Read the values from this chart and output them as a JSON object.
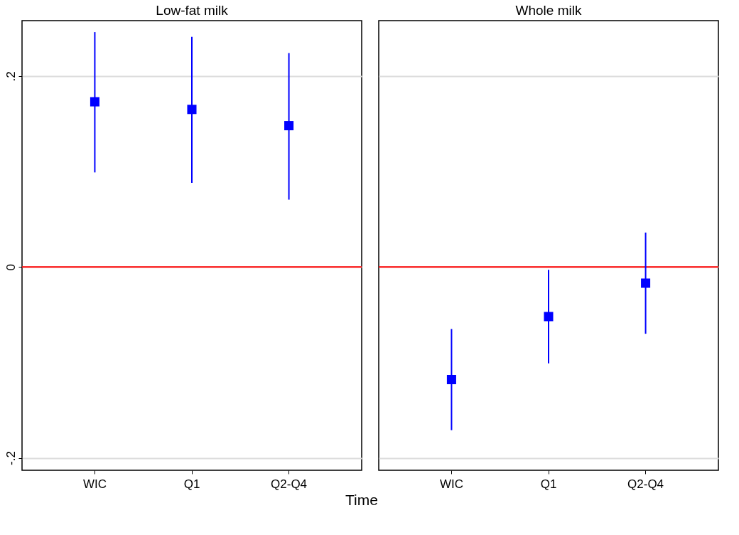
{
  "chart_data": [
    {
      "type": "scatter",
      "title": "Low-fat milk",
      "xlabel": "Time",
      "categories": [
        "WIC",
        "Q1",
        "Q2-Q4"
      ],
      "series": [
        {
          "color": "#0000ff",
          "values": [
            0.173,
            0.165,
            0.148
          ],
          "errors": [
            [
              0.099,
              0.246
            ],
            [
              0.088,
              0.241
            ],
            [
              0.0705,
              0.224
            ]
          ]
        }
      ],
      "marker": "square",
      "ylim": [
        -0.213,
        0.258
      ],
      "yticks": [
        {
          "value": -0.2,
          "label": "-.2"
        },
        {
          "value": 0,
          "label": "0"
        },
        {
          "value": 0.2,
          "label": ".2"
        }
      ],
      "grid": "y",
      "ref_lines": [
        {
          "axis": "y",
          "value": 0,
          "color": "#ff0000"
        }
      ]
    },
    {
      "type": "scatter",
      "title": "Whole milk",
      "categories": [
        "WIC",
        "Q1",
        "Q2-Q4"
      ],
      "series": [
        {
          "color": "#0000ff",
          "values": [
            -0.118,
            -0.052,
            -0.017
          ],
          "errors": [
            [
              -0.171,
              -0.065
            ],
            [
              -0.101,
              -0.003
            ],
            [
              -0.07,
              0.036
            ]
          ]
        }
      ],
      "marker": "square",
      "ylim": [
        -0.213,
        0.258
      ],
      "yticks": [
        -0.2,
        0,
        0.2
      ],
      "grid": "y",
      "tick_labels": "x",
      "ref_lines": [
        {
          "axis": "y",
          "value": 0,
          "color": "#ff0000"
        }
      ]
    }
  ]
}
